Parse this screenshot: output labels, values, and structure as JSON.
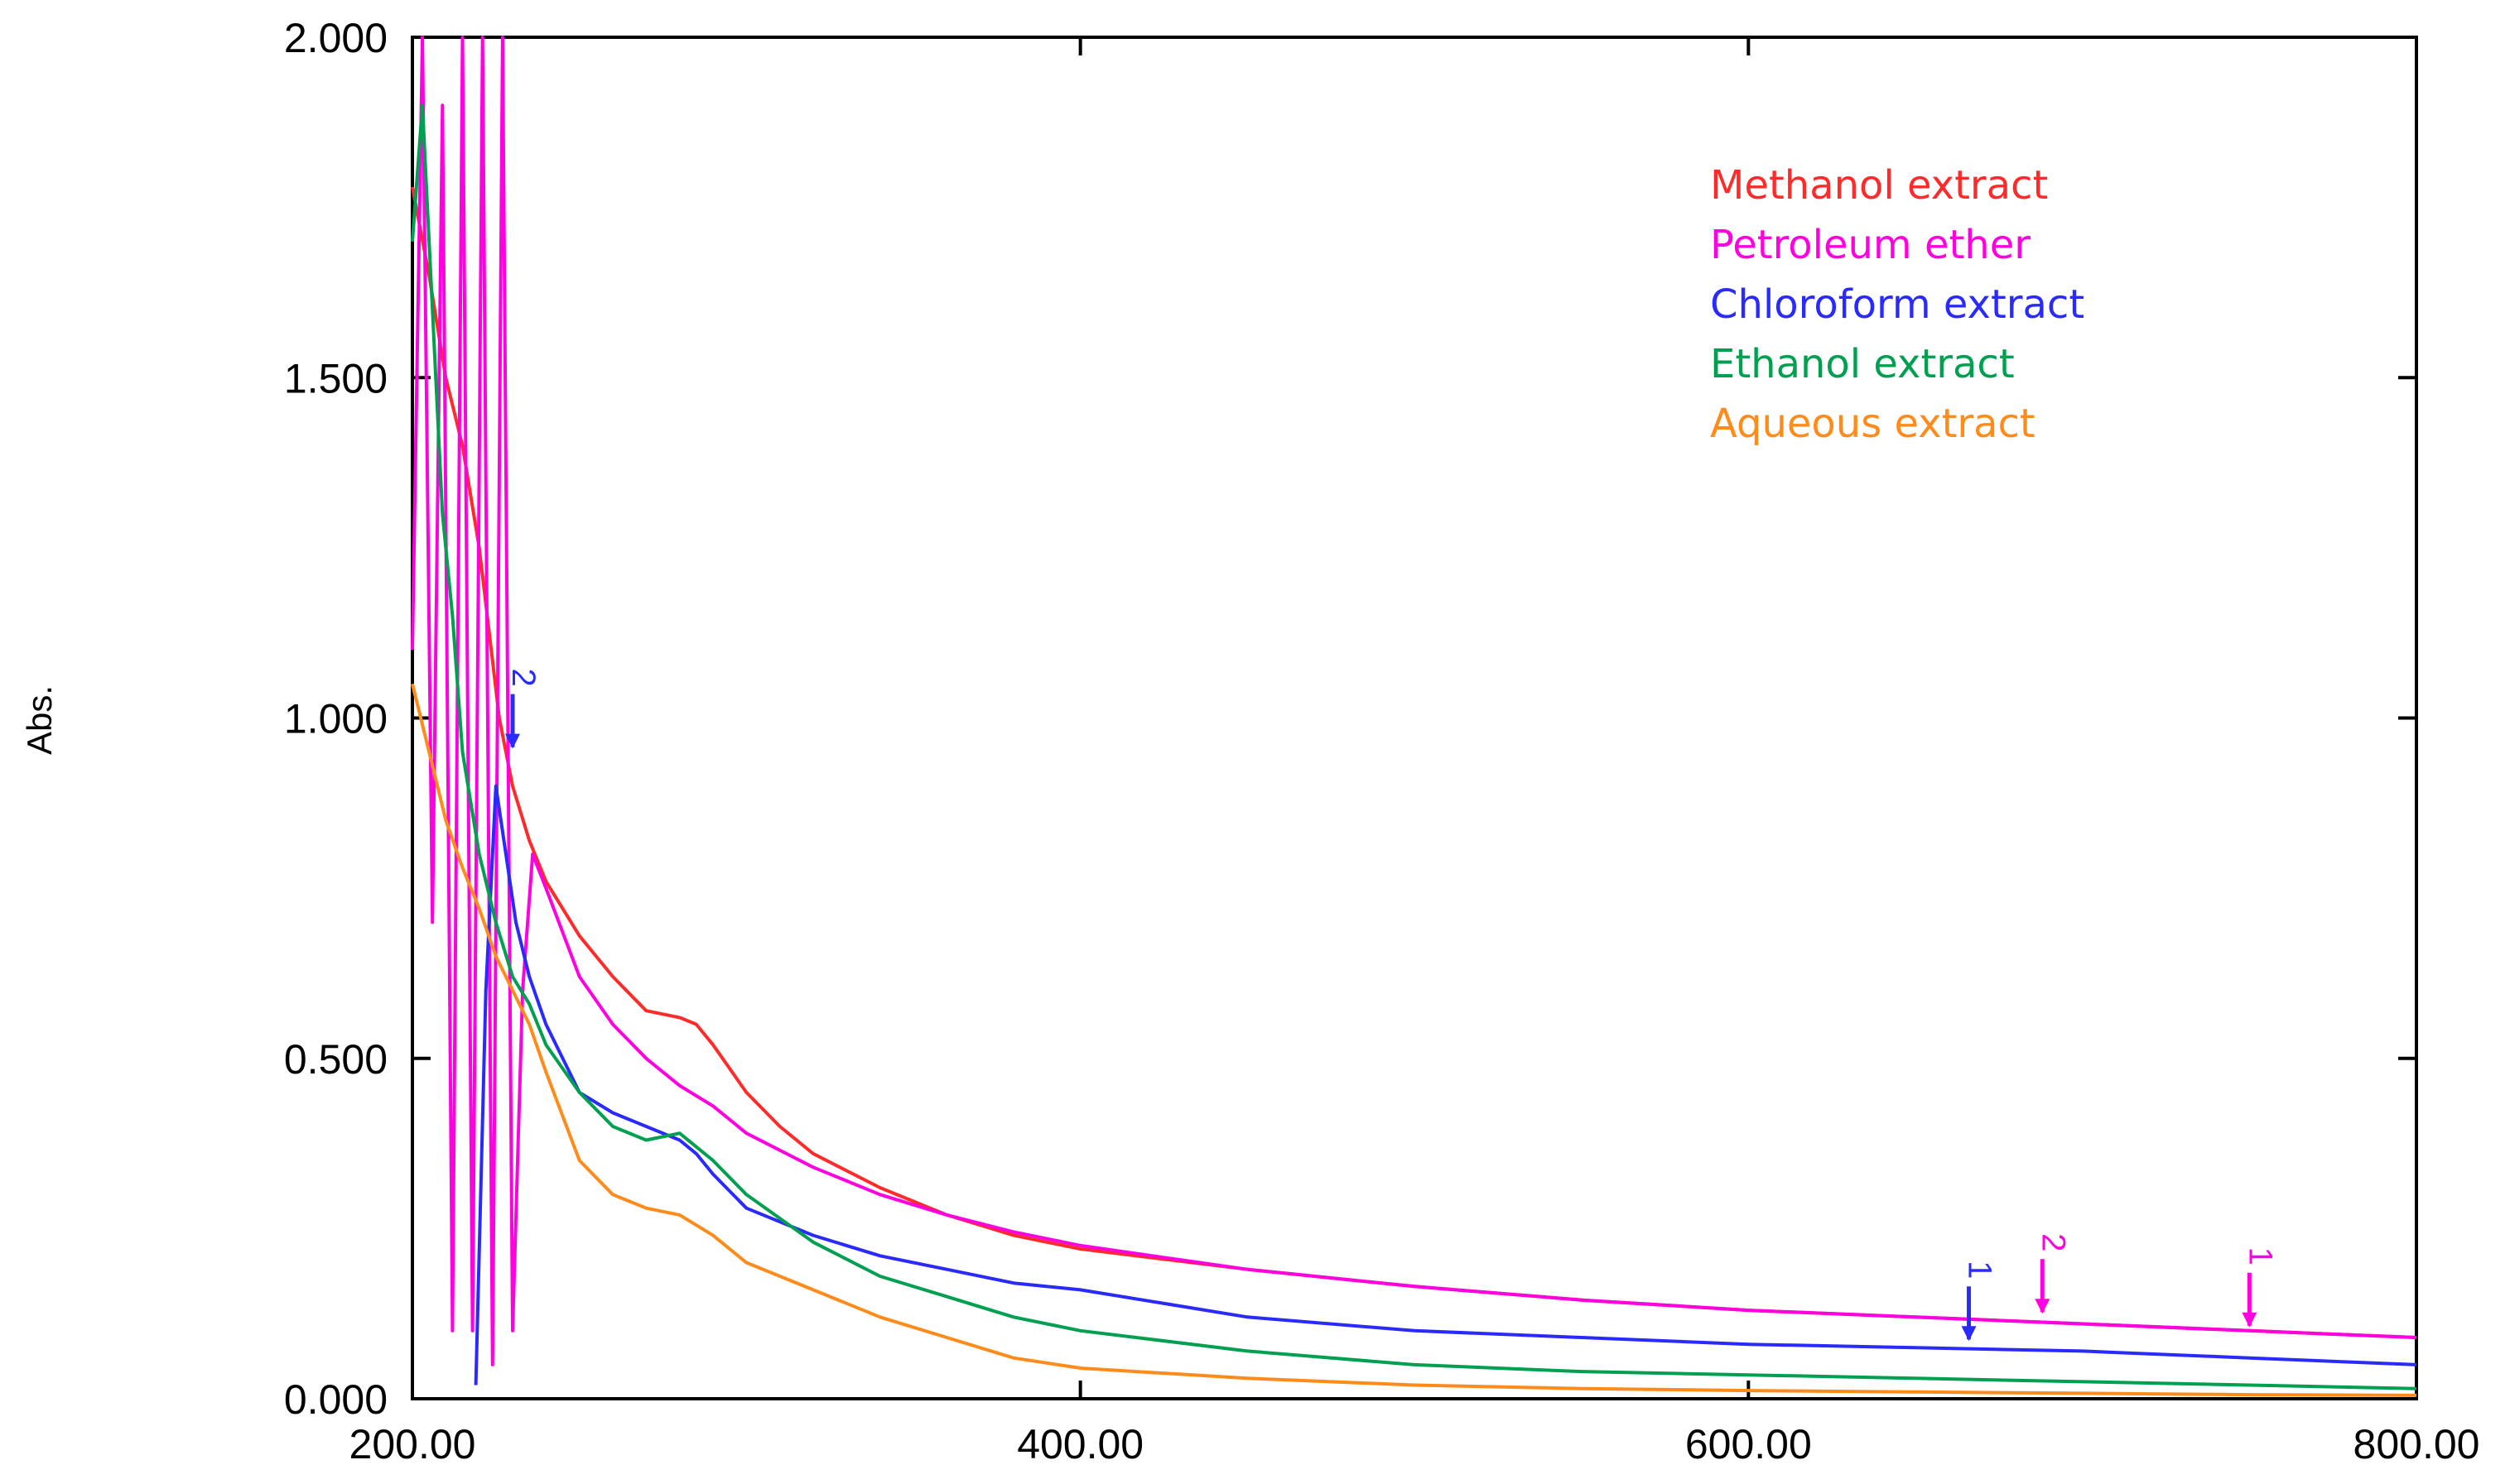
{
  "chart_data": {
    "type": "line",
    "title": "",
    "xlabel": "",
    "ylabel": "Abs.",
    "xlim": [
      200,
      800
    ],
    "ylim": [
      0,
      2
    ],
    "grid": false,
    "legend_position": "top-right",
    "x_ticks": [
      {
        "value": 200,
        "label": "200.00"
      },
      {
        "value": 400,
        "label": "400.00"
      },
      {
        "value": 600,
        "label": "600.00"
      },
      {
        "value": 800,
        "label": "800.00"
      }
    ],
    "y_ticks": [
      {
        "value": 0,
        "label": "0.000"
      },
      {
        "value": 0.5,
        "label": "0.500"
      },
      {
        "value": 1.0,
        "label": "1.000"
      },
      {
        "value": 1.5,
        "label": "1.500"
      },
      {
        "value": 2.0,
        "label": "2.000"
      }
    ],
    "series": [
      {
        "name": "Methanol extract",
        "color": "#ff2a2a",
        "x": [
          200,
          205,
          210,
          215,
          220,
          226,
          230,
          235,
          240,
          250,
          260,
          270,
          280,
          285,
          290,
          300,
          310,
          320,
          340,
          360,
          380,
          400,
          450,
          500,
          550,
          600,
          650,
          700,
          750,
          800
        ],
        "y": [
          1.78,
          1.65,
          1.5,
          1.4,
          1.25,
          1.0,
          0.9,
          0.82,
          0.76,
          0.68,
          0.62,
          0.57,
          0.56,
          0.55,
          0.52,
          0.45,
          0.4,
          0.36,
          0.31,
          0.27,
          0.24,
          0.22,
          0.19,
          0.165,
          0.145,
          0.13,
          0.12,
          0.11,
          0.1,
          0.09
        ]
      },
      {
        "name": "Petroleum ether",
        "color": "#ff00e0",
        "x": [
          200,
          203,
          206,
          209,
          212,
          215,
          218,
          221,
          224,
          227,
          230,
          233,
          236,
          240,
          250,
          260,
          270,
          280,
          290,
          300,
          320,
          340,
          360,
          380,
          400,
          450,
          500,
          550,
          600,
          650,
          700,
          750,
          800
        ],
        "y": [
          1.1,
          2.0,
          0.7,
          1.9,
          0.1,
          2.0,
          0.1,
          2.0,
          0.05,
          2.0,
          0.1,
          0.6,
          0.8,
          0.75,
          0.62,
          0.55,
          0.5,
          0.46,
          0.43,
          0.39,
          0.34,
          0.3,
          0.27,
          0.245,
          0.225,
          0.19,
          0.165,
          0.145,
          0.13,
          0.12,
          0.11,
          0.1,
          0.09
        ]
      },
      {
        "name": "Chloroform extract",
        "color": "#2a2aff",
        "x": [
          219,
          222,
          225,
          228,
          231,
          235,
          240,
          250,
          260,
          270,
          280,
          285,
          290,
          300,
          320,
          340,
          360,
          380,
          400,
          450,
          500,
          550,
          600,
          650,
          700,
          750,
          800
        ],
        "y": [
          0.02,
          0.6,
          0.9,
          0.8,
          0.7,
          0.62,
          0.55,
          0.45,
          0.42,
          0.4,
          0.38,
          0.36,
          0.33,
          0.28,
          0.24,
          0.21,
          0.19,
          0.17,
          0.16,
          0.12,
          0.1,
          0.09,
          0.08,
          0.075,
          0.07,
          0.06,
          0.05
        ]
      },
      {
        "name": "Ethanol extract",
        "color": "#00a050",
        "x": [
          200,
          203,
          206,
          209,
          212,
          215,
          220,
          225,
          230,
          235,
          240,
          250,
          260,
          270,
          280,
          290,
          300,
          320,
          340,
          360,
          380,
          400,
          450,
          500,
          550,
          600,
          650,
          700,
          750,
          800
        ],
        "y": [
          1.7,
          1.9,
          1.6,
          1.3,
          1.15,
          0.95,
          0.8,
          0.7,
          0.62,
          0.58,
          0.52,
          0.45,
          0.4,
          0.38,
          0.39,
          0.35,
          0.3,
          0.23,
          0.18,
          0.15,
          0.12,
          0.1,
          0.07,
          0.05,
          0.04,
          0.035,
          0.03,
          0.025,
          0.02,
          0.015
        ]
      },
      {
        "name": "Aqueous extract",
        "color": "#ff8c1a",
        "x": [
          200,
          205,
          210,
          215,
          220,
          225,
          230,
          235,
          240,
          250,
          260,
          270,
          280,
          290,
          300,
          320,
          340,
          360,
          380,
          400,
          450,
          500,
          550,
          600,
          650,
          700,
          750,
          800
        ],
        "y": [
          1.05,
          0.95,
          0.85,
          0.78,
          0.72,
          0.65,
          0.6,
          0.55,
          0.48,
          0.35,
          0.3,
          0.28,
          0.27,
          0.24,
          0.2,
          0.16,
          0.12,
          0.09,
          0.06,
          0.045,
          0.03,
          0.02,
          0.015,
          0.012,
          0.01,
          0.008,
          0.006,
          0.005
        ]
      }
    ],
    "peak_markers": [
      {
        "label": "1",
        "x": 666,
        "y": 0.08,
        "color": "#2a2aff"
      },
      {
        "label": "2",
        "x": 688,
        "y": 0.12,
        "color": "#ff00e0"
      },
      {
        "label": "1",
        "x": 750,
        "y": 0.1,
        "color": "#ff00e0"
      },
      {
        "label": "2",
        "x": 230,
        "y": 0.95,
        "color": "#2a2aff"
      }
    ]
  }
}
